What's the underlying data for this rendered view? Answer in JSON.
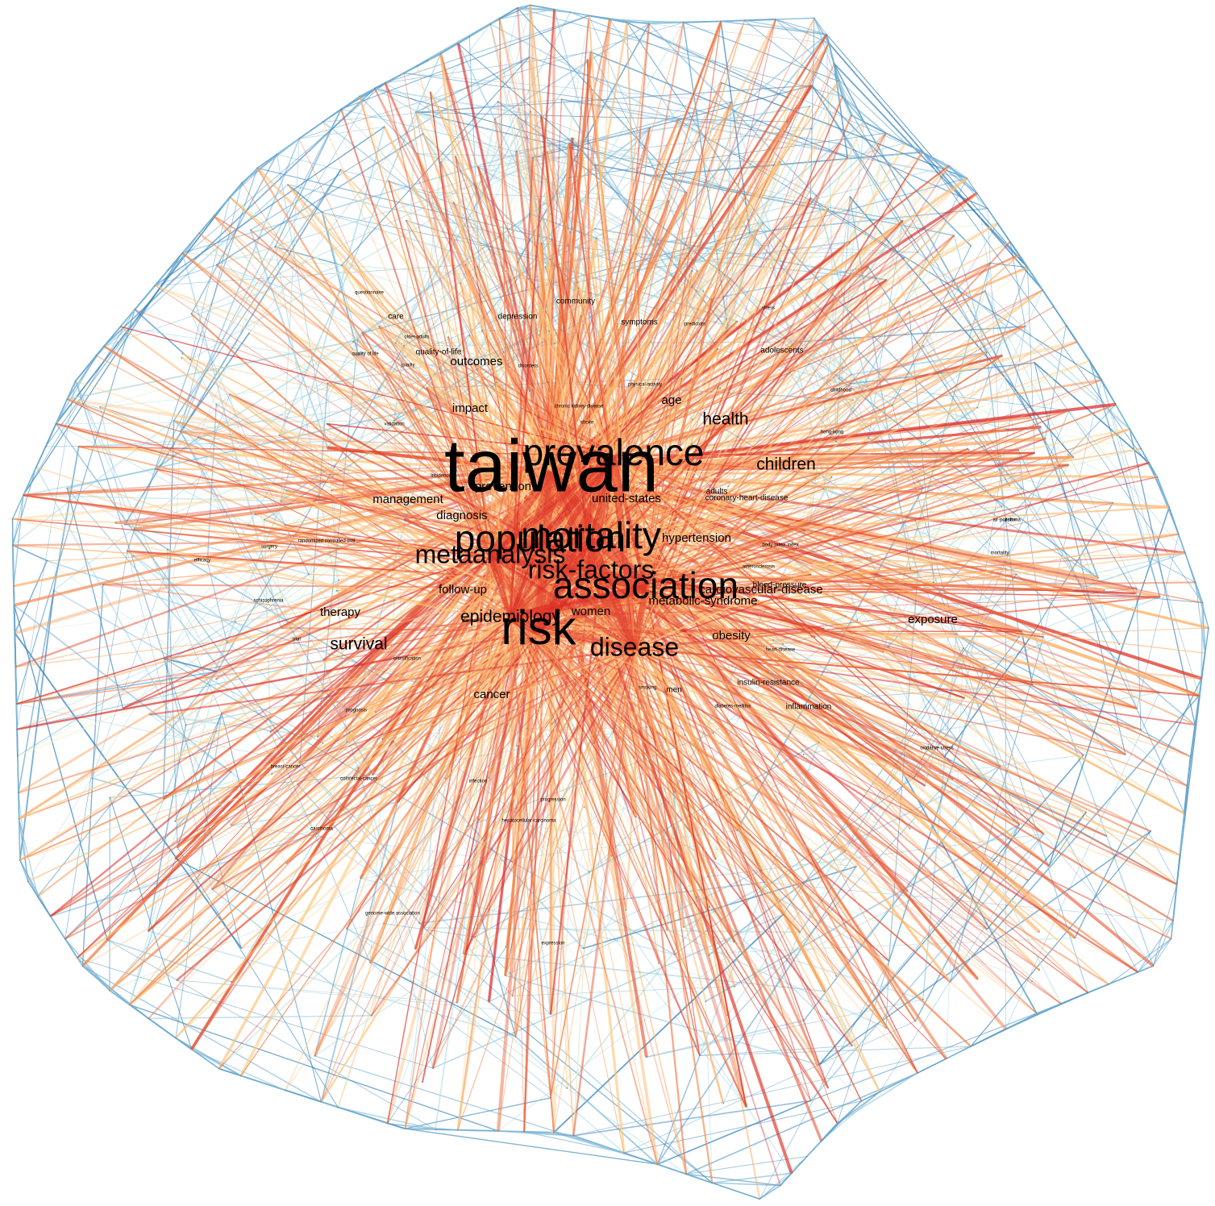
{
  "network": {
    "edge_palette": [
      "#2c7bb6",
      "#abd9e9",
      "#ffffbf",
      "#fdae61",
      "#d7191c"
    ],
    "hub_terms": [
      "taiwan",
      "risk",
      "association",
      "mortality",
      "population",
      "prevalence",
      "metaanalysis",
      "risk-factors",
      "disease",
      "epidemiology"
    ],
    "labels": [
      {
        "id": "taiwan",
        "text": "taiwan",
        "size": "xxl"
      },
      {
        "id": "risk",
        "text": "risk",
        "size": "xl"
      },
      {
        "id": "association",
        "text": "association",
        "size": "l"
      },
      {
        "id": "prevalence",
        "text": "prevalence",
        "size": "l"
      },
      {
        "id": "mortality",
        "text": "mortality",
        "size": "l"
      },
      {
        "id": "population",
        "text": "population",
        "size": "l"
      },
      {
        "id": "metaanalysis",
        "text": "metaanalysis",
        "size": "m"
      },
      {
        "id": "risk-factors",
        "text": "risk-factors",
        "size": "m"
      },
      {
        "id": "disease",
        "text": "disease",
        "size": "m"
      },
      {
        "id": "epidemiology",
        "text": "epidemiology",
        "size": "ms"
      },
      {
        "id": "health",
        "text": "health",
        "size": "ms"
      },
      {
        "id": "children",
        "text": "children",
        "size": "ms"
      },
      {
        "id": "survival",
        "text": "survival",
        "size": "ms"
      },
      {
        "id": "united-states",
        "text": "united-states",
        "size": "s"
      },
      {
        "id": "women",
        "text": "women",
        "size": "s"
      },
      {
        "id": "hypertension",
        "text": "hypertension",
        "size": "s"
      },
      {
        "id": "cardiovascular-disease",
        "text": "cardiovascular-disease",
        "size": "s"
      },
      {
        "id": "follow-up",
        "text": "follow-up",
        "size": "s"
      },
      {
        "id": "outcomes",
        "text": "outcomes",
        "size": "s"
      },
      {
        "id": "prevention",
        "text": "prevention",
        "size": "s"
      },
      {
        "id": "cancer",
        "text": "cancer",
        "size": "s"
      },
      {
        "id": "therapy",
        "text": "therapy",
        "size": "s"
      },
      {
        "id": "exposure",
        "text": "exposure",
        "size": "s"
      },
      {
        "id": "impact",
        "text": "impact",
        "size": "s"
      },
      {
        "id": "age",
        "text": "age",
        "size": "s"
      },
      {
        "id": "obesity",
        "text": "obesity",
        "size": "s"
      },
      {
        "id": "metabolic-syndrome",
        "text": "metabolic-syndrome",
        "size": "s"
      },
      {
        "id": "diagnosis",
        "text": "diagnosis",
        "size": "s"
      },
      {
        "id": "management",
        "text": "management",
        "size": "s"
      },
      {
        "id": "adults",
        "text": "adults",
        "size": "xs"
      },
      {
        "id": "coronary-heart-disease",
        "text": "coronary-heart-disease",
        "size": "xs"
      },
      {
        "id": "blood-pressure",
        "text": "blood-pressure",
        "size": "xs"
      },
      {
        "id": "men",
        "text": "men",
        "size": "xs"
      },
      {
        "id": "inflammation",
        "text": "inflammation",
        "size": "xs"
      },
      {
        "id": "insulin-resistance",
        "text": "insulin-resistance",
        "size": "xs"
      },
      {
        "id": "community",
        "text": "community",
        "size": "xs"
      },
      {
        "id": "depression",
        "text": "depression",
        "size": "xs"
      },
      {
        "id": "symptoms",
        "text": "symptoms",
        "size": "xs"
      },
      {
        "id": "care",
        "text": "care",
        "size": "xs"
      },
      {
        "id": "adolescents",
        "text": "adolescents",
        "size": "xs"
      },
      {
        "id": "quality-of-life",
        "text": "quality-of-life",
        "size": "xs"
      },
      {
        "id": "validation",
        "text": "validation",
        "size": "xxs"
      },
      {
        "id": "smoking",
        "text": "smoking",
        "size": "xxs"
      },
      {
        "id": "diabetes-mellitus",
        "text": "diabetes-mellitus",
        "size": "xxs"
      },
      {
        "id": "body-mass-index",
        "text": "body-mass index",
        "size": "xxs"
      },
      {
        "id": "atherosclerosis",
        "text": "atherosclerosis",
        "size": "xxs"
      },
      {
        "id": "hepatocellular-carcinoma",
        "text": "hepatocellular-carcinoma",
        "size": "xxs"
      },
      {
        "id": "infection",
        "text": "infection",
        "size": "xxs"
      },
      {
        "id": "oxidative-stress",
        "text": "oxidative stress",
        "size": "xxs"
      },
      {
        "id": "expression",
        "text": "expression",
        "size": "xxs"
      },
      {
        "id": "chronic-kidney-disease",
        "text": "chronic kidney-disease",
        "size": "xxs"
      },
      {
        "id": "stroke",
        "text": "stroke",
        "size": "xxs"
      },
      {
        "id": "randomized-controlled-trial",
        "text": "randomized controlled-trial",
        "size": "xxs"
      },
      {
        "id": "schizophrenia",
        "text": "schizophrenia",
        "size": "xxs"
      },
      {
        "id": "quality-of-life-2",
        "text": "quality of life",
        "size": "xxs"
      },
      {
        "id": "disorders",
        "text": "disorders",
        "size": "xxs"
      },
      {
        "id": "predictors",
        "text": "predictors",
        "size": "xxs"
      },
      {
        "id": "heart-disease",
        "text": "heart-disease",
        "size": "xxs"
      },
      {
        "id": "progression",
        "text": "progression",
        "size": "xxs"
      },
      {
        "id": "breast-cancer",
        "text": "breast-cancer",
        "size": "xxs"
      },
      {
        "id": "colorectal-cancer",
        "text": "colorectal-cancer",
        "size": "xxs"
      },
      {
        "id": "genome-wide-association",
        "text": "genome-wide association",
        "size": "xxs"
      },
      {
        "id": "questionnaire",
        "text": "questionnaire",
        "size": "xxs"
      },
      {
        "id": "efficacy",
        "text": "efficacy",
        "size": "xxs"
      },
      {
        "id": "surgery",
        "text": "surgery",
        "size": "xxs"
      },
      {
        "id": "trial",
        "text": "trial",
        "size": "xxs"
      },
      {
        "id": "asthma",
        "text": "asthma",
        "size": "xxs"
      },
      {
        "id": "air-pollution",
        "text": "air-pollution",
        "size": "xxs"
      },
      {
        "id": "hong-kong",
        "text": "hong-kong",
        "size": "xxs"
      },
      {
        "id": "physical-activity",
        "text": "physical-activity",
        "size": "xxs"
      },
      {
        "id": "older-adults",
        "text": "older-adults",
        "size": "xxs"
      },
      {
        "id": "classification",
        "text": "classification",
        "size": "xxs"
      },
      {
        "id": "diseases",
        "text": "diseases",
        "size": "xxs"
      },
      {
        "id": "mortality-2",
        "text": "mortality",
        "size": "xxs"
      },
      {
        "id": "childhood",
        "text": "childhood",
        "size": "xxs"
      },
      {
        "id": "carcinoma",
        "text": "carcinoma",
        "size": "xxs"
      },
      {
        "id": "prognosis",
        "text": "prognosis",
        "size": "xxs"
      },
      {
        "id": "quality",
        "text": "quality",
        "size": "xxs"
      },
      {
        "id": "stress",
        "text": "stress",
        "size": "xxs"
      },
      {
        "id": "incidence",
        "text": "incidence",
        "size": "xxs"
      }
    ]
  }
}
